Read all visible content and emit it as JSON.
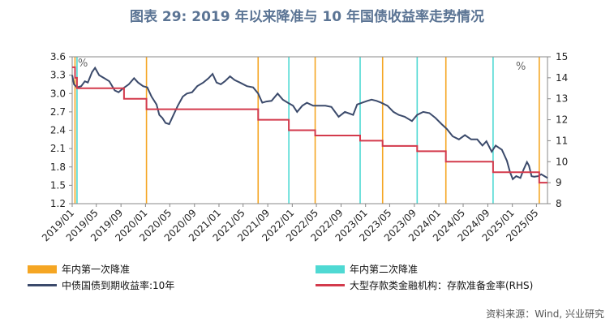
{
  "title": "图表 29: 2019 年以来降准与 10 年国债收益率走势情况",
  "source": "资料来源：Wind, 兴业研究",
  "colors": {
    "bond": "#3b4a6b",
    "rrr": "#d33a4c",
    "cut1": "#f5a623",
    "cut2": "#4fd9d3"
  },
  "legend": {
    "cut1": "年内第一次降准",
    "cut2": "年内第二次降准",
    "bond": "中债国债到期收益率:10年",
    "rrr": "大型存款类金融机构：存款准备金率(RHS)"
  },
  "chart_data": {
    "type": "line",
    "xlabel": "",
    "ylabel": "",
    "y_left_unit": "%",
    "y_right_unit": "%",
    "y_left_range": [
      1.2,
      3.6
    ],
    "y_left_ticks": [
      "3.6",
      "3.3",
      "3.0",
      "2.7",
      "2.4",
      "2.1",
      "1.8",
      "1.5",
      "1.2"
    ],
    "y_right_range": [
      8,
      15
    ],
    "y_right_ticks": [
      "15",
      "14",
      "13",
      "12",
      "11",
      "10",
      "9",
      "8"
    ],
    "x_range": [
      "2019-01-01",
      "2025-06-25"
    ],
    "x_ticks": [
      "2019/01",
      "2019/05",
      "2019/09",
      "2020/01",
      "2020/05",
      "2020/09",
      "2021/01",
      "2021/05",
      "2021/09",
      "2022/01",
      "2022/05",
      "2022/09",
      "2023/01",
      "2023/05",
      "2023/09",
      "2024/01",
      "2024/05",
      "2024/09",
      "2025/01",
      "2025/05"
    ],
    "first_cuts": [
      "2019-01-15",
      "2020-01-06",
      "2021-07-15",
      "2022-04-25",
      "2023-03-27",
      "2024-02-05",
      "2025-05-15"
    ],
    "second_cuts": [
      "2019-01-25",
      "2021-12-15",
      "2022-12-05",
      "2023-09-15",
      "2024-09-27"
    ],
    "bond_yield": [
      [
        "2019-01-01",
        3.3
      ],
      [
        "2019-01-10",
        3.15
      ],
      [
        "2019-01-25",
        3.1
      ],
      [
        "2019-02-15",
        3.12
      ],
      [
        "2019-03-05",
        3.2
      ],
      [
        "2019-03-20",
        3.18
      ],
      [
        "2019-04-10",
        3.35
      ],
      [
        "2019-04-25",
        3.42
      ],
      [
        "2019-05-15",
        3.3
      ],
      [
        "2019-06-10",
        3.25
      ],
      [
        "2019-07-05",
        3.2
      ],
      [
        "2019-08-01",
        3.05
      ],
      [
        "2019-08-20",
        3.02
      ],
      [
        "2019-09-10",
        3.08
      ],
      [
        "2019-10-10",
        3.15
      ],
      [
        "2019-11-05",
        3.25
      ],
      [
        "2019-11-25",
        3.18
      ],
      [
        "2019-12-20",
        3.12
      ],
      [
        "2020-01-10",
        3.1
      ],
      [
        "2020-01-31",
        2.95
      ],
      [
        "2020-02-25",
        2.82
      ],
      [
        "2020-03-10",
        2.65
      ],
      [
        "2020-03-25",
        2.6
      ],
      [
        "2020-04-10",
        2.52
      ],
      [
        "2020-04-28",
        2.5
      ],
      [
        "2020-05-15",
        2.62
      ],
      [
        "2020-06-10",
        2.8
      ],
      [
        "2020-07-05",
        2.95
      ],
      [
        "2020-07-25",
        3.0
      ],
      [
        "2020-08-20",
        3.02
      ],
      [
        "2020-09-15",
        3.12
      ],
      [
        "2020-10-15",
        3.18
      ],
      [
        "2020-11-10",
        3.25
      ],
      [
        "2020-11-30",
        3.32
      ],
      [
        "2020-12-20",
        3.18
      ],
      [
        "2021-01-10",
        3.15
      ],
      [
        "2021-01-30",
        3.2
      ],
      [
        "2021-02-25",
        3.28
      ],
      [
        "2021-03-20",
        3.22
      ],
      [
        "2021-04-15",
        3.18
      ],
      [
        "2021-05-20",
        3.12
      ],
      [
        "2021-06-20",
        3.1
      ],
      [
        "2021-07-15",
        3.0
      ],
      [
        "2021-08-05",
        2.85
      ],
      [
        "2021-08-25",
        2.87
      ],
      [
        "2021-09-20",
        2.88
      ],
      [
        "2021-10-20",
        3.0
      ],
      [
        "2021-11-15",
        2.9
      ],
      [
        "2021-12-10",
        2.85
      ],
      [
        "2022-01-05",
        2.8
      ],
      [
        "2022-01-25",
        2.7
      ],
      [
        "2022-02-20",
        2.8
      ],
      [
        "2022-03-15",
        2.85
      ],
      [
        "2022-04-15",
        2.8
      ],
      [
        "2022-05-15",
        2.8
      ],
      [
        "2022-06-15",
        2.8
      ],
      [
        "2022-07-15",
        2.78
      ],
      [
        "2022-08-20",
        2.62
      ],
      [
        "2022-09-20",
        2.7
      ],
      [
        "2022-10-31",
        2.65
      ],
      [
        "2022-11-20",
        2.82
      ],
      [
        "2022-12-15",
        2.85
      ],
      [
        "2023-01-10",
        2.88
      ],
      [
        "2023-01-31",
        2.9
      ],
      [
        "2023-02-25",
        2.88
      ],
      [
        "2023-03-20",
        2.85
      ],
      [
        "2023-04-20",
        2.8
      ],
      [
        "2023-05-20",
        2.7
      ],
      [
        "2023-06-15",
        2.65
      ],
      [
        "2023-07-15",
        2.62
      ],
      [
        "2023-08-20",
        2.55
      ],
      [
        "2023-09-15",
        2.65
      ],
      [
        "2023-10-15",
        2.7
      ],
      [
        "2023-11-15",
        2.68
      ],
      [
        "2023-12-15",
        2.6
      ],
      [
        "2024-01-15",
        2.5
      ],
      [
        "2024-02-10",
        2.42
      ],
      [
        "2024-03-10",
        2.3
      ],
      [
        "2024-04-10",
        2.25
      ],
      [
        "2024-05-10",
        2.32
      ],
      [
        "2024-06-10",
        2.25
      ],
      [
        "2024-07-10",
        2.25
      ],
      [
        "2024-08-05",
        2.15
      ],
      [
        "2024-08-25",
        2.22
      ],
      [
        "2024-09-20",
        2.05
      ],
      [
        "2024-10-10",
        2.15
      ],
      [
        "2024-11-10",
        2.08
      ],
      [
        "2024-12-05",
        1.9
      ],
      [
        "2024-12-20",
        1.72
      ],
      [
        "2025-01-03",
        1.6
      ],
      [
        "2025-01-20",
        1.65
      ],
      [
        "2025-02-10",
        1.62
      ],
      [
        "2025-02-25",
        1.75
      ],
      [
        "2025-03-15",
        1.88
      ],
      [
        "2025-03-25",
        1.82
      ],
      [
        "2025-04-07",
        1.65
      ],
      [
        "2025-04-20",
        1.64
      ],
      [
        "2025-05-10",
        1.65
      ],
      [
        "2025-05-25",
        1.68
      ],
      [
        "2025-06-10",
        1.65
      ],
      [
        "2025-06-25",
        1.62
      ]
    ],
    "rrr_steps": [
      [
        "2019-01-01",
        14.5
      ],
      [
        "2019-01-15",
        14.0
      ],
      [
        "2019-01-25",
        13.5
      ],
      [
        "2019-09-16",
        13.0
      ],
      [
        "2020-01-06",
        12.5
      ],
      [
        "2021-07-15",
        12.0
      ],
      [
        "2021-12-15",
        11.5
      ],
      [
        "2022-04-25",
        11.25
      ],
      [
        "2022-12-05",
        11.0
      ],
      [
        "2023-03-27",
        10.75
      ],
      [
        "2023-09-15",
        10.5
      ],
      [
        "2024-02-05",
        10.0
      ],
      [
        "2024-09-27",
        9.5
      ],
      [
        "2025-05-15",
        9.0
      ],
      [
        "2025-06-25",
        9.0
      ]
    ]
  }
}
